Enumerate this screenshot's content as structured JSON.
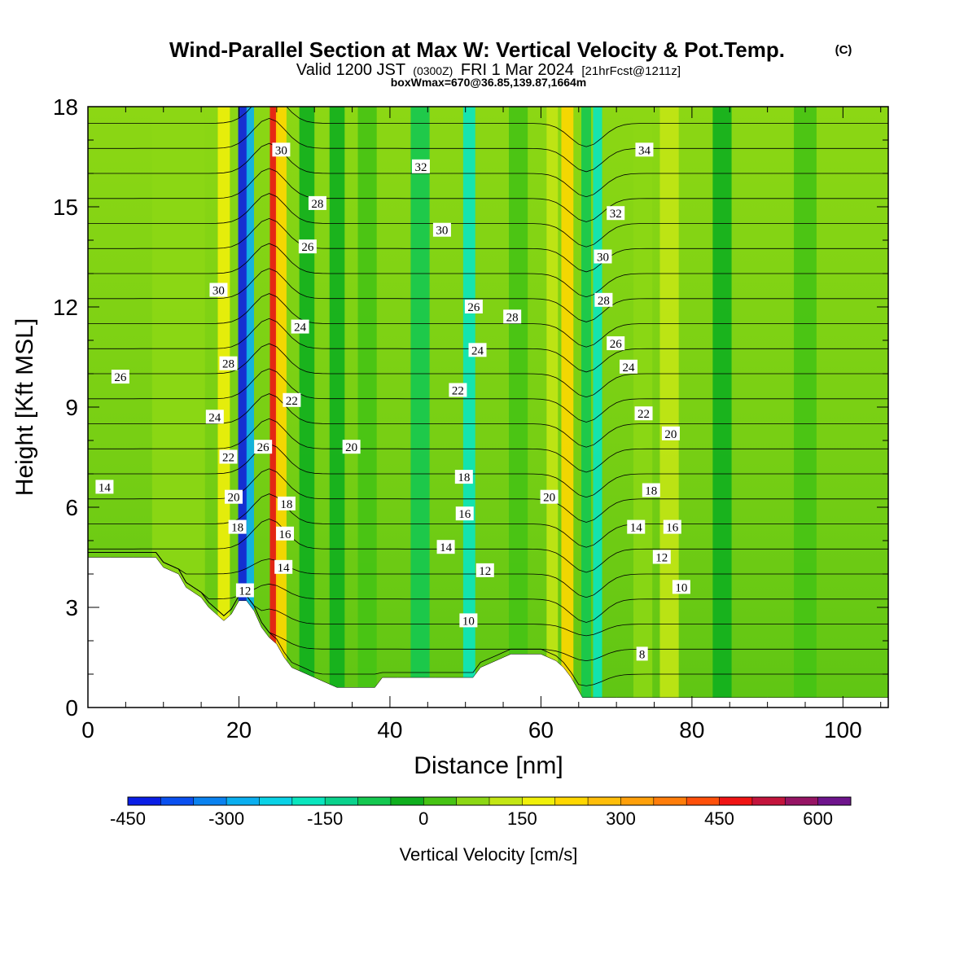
{
  "header": {
    "title": "Wind-Parallel Section at Max W: Vertical Velocity & Pot.Temp.",
    "copyright": "(C)",
    "valid_prefix": "Valid 1200 JST",
    "valid_utc": "(0300Z)",
    "valid_date": "FRI 1 Mar 2024",
    "forecast": "[21hrFcst@1211z]",
    "box_info": "boxWmax=670@36.85,139.87,1664m"
  },
  "chart_data": {
    "type": "heatmap",
    "title": "Wind-Parallel Section at Max W: Vertical Velocity & Pot.Temp.",
    "xlabel": "Distance [nm]",
    "ylabel": "Height [Kft MSL]",
    "xlim": [
      0,
      106
    ],
    "ylim": [
      0,
      18
    ],
    "x_ticks": [
      0,
      20,
      40,
      60,
      80,
      100
    ],
    "y_ticks": [
      0,
      3,
      6,
      9,
      12,
      15,
      18
    ],
    "colorbar": {
      "label": "Vertical Velocity [cm/s]",
      "min": -450,
      "step": 50,
      "tick_labels": [
        "-450",
        "-300",
        "-150",
        "0",
        "150",
        "300",
        "450",
        "600"
      ],
      "tick_values": [
        -450,
        -300,
        -150,
        0,
        150,
        300,
        450,
        600
      ],
      "colors": [
        "#0a1ee6",
        "#0a50f0",
        "#0a82f0",
        "#0aaff0",
        "#0ad2e6",
        "#0ae6be",
        "#0ad28c",
        "#14c850",
        "#0faf1e",
        "#46c314",
        "#8cd714",
        "#c3e614",
        "#f0f00a",
        "#ffd700",
        "#ffbe0a",
        "#ffa00a",
        "#ff7d0a",
        "#ff500a",
        "#f01414",
        "#c3143c",
        "#961464",
        "#6e148c"
      ]
    },
    "terrain_outline_kft": [
      [
        0,
        4.5
      ],
      [
        3,
        4.5
      ],
      [
        6,
        4.5
      ],
      [
        9,
        4.5
      ],
      [
        10,
        4.2
      ],
      [
        12,
        4.0
      ],
      [
        13,
        3.6
      ],
      [
        15,
        3.3
      ],
      [
        16,
        3.0
      ],
      [
        18,
        2.6
      ],
      [
        19,
        2.8
      ],
      [
        20,
        3.2
      ],
      [
        21,
        3.2
      ],
      [
        22,
        2.9
      ],
      [
        23,
        2.4
      ],
      [
        24,
        2.1
      ],
      [
        25,
        1.9
      ],
      [
        26,
        1.5
      ],
      [
        27,
        1.2
      ],
      [
        29,
        1.0
      ],
      [
        31,
        0.8
      ],
      [
        33,
        0.6
      ],
      [
        36,
        0.6
      ],
      [
        38,
        0.6
      ],
      [
        39,
        0.9
      ],
      [
        41,
        0.9
      ],
      [
        46,
        0.9
      ],
      [
        51,
        0.9
      ],
      [
        52,
        1.2
      ],
      [
        54,
        1.4
      ],
      [
        56,
        1.6
      ],
      [
        60,
        1.6
      ],
      [
        62,
        1.4
      ],
      [
        63,
        1.2
      ],
      [
        64,
        0.9
      ],
      [
        65,
        0.5
      ],
      [
        65.5,
        0.3
      ],
      [
        70,
        0.3
      ],
      [
        80,
        0.3
      ],
      [
        90,
        0.3
      ],
      [
        100,
        0.3
      ],
      [
        106,
        0.3
      ]
    ],
    "wind_columns": [
      {
        "x": 12,
        "w": 7,
        "v": 80
      },
      {
        "x": 18,
        "w": 1.6,
        "v": 150
      },
      {
        "x": 20.5,
        "w": 1.2,
        "v": -420
      },
      {
        "x": 21.5,
        "w": 1.0,
        "v": -280
      },
      {
        "x": 24.6,
        "w": 1.0,
        "v": 480
      },
      {
        "x": 25.6,
        "w": 1.4,
        "v": 200
      },
      {
        "x": 29,
        "w": 2.0,
        "v": -50
      },
      {
        "x": 33,
        "w": 2.0,
        "v": -30
      },
      {
        "x": 37,
        "w": 2.5,
        "v": 40
      },
      {
        "x": 44,
        "w": 2.5,
        "v": -80
      },
      {
        "x": 50.5,
        "w": 1.6,
        "v": -160
      },
      {
        "x": 57,
        "w": 2.5,
        "v": 40
      },
      {
        "x": 61.5,
        "w": 1.5,
        "v": 100
      },
      {
        "x": 63.5,
        "w": 1.6,
        "v": 210
      },
      {
        "x": 66,
        "w": 1.3,
        "v": -60
      },
      {
        "x": 67.5,
        "w": 1.2,
        "v": -170
      },
      {
        "x": 73.5,
        "w": 2.5,
        "v": 80
      },
      {
        "x": 77,
        "w": 2.5,
        "v": 110
      },
      {
        "x": 84,
        "w": 2.5,
        "v": -20
      },
      {
        "x": 95,
        "w": 3.0,
        "v": 30
      }
    ],
    "theta_labels": [
      {
        "text": "14",
        "x": 2.2,
        "y": 6.6
      },
      {
        "text": "26",
        "x": 4.3,
        "y": 9.9
      },
      {
        "text": "30",
        "x": 17.3,
        "y": 12.5
      },
      {
        "text": "28",
        "x": 18.6,
        "y": 10.3
      },
      {
        "text": "24",
        "x": 16.8,
        "y": 8.7
      },
      {
        "text": "22",
        "x": 18.6,
        "y": 7.5
      },
      {
        "text": "20",
        "x": 19.3,
        "y": 6.3
      },
      {
        "text": "18",
        "x": 19.8,
        "y": 5.4
      },
      {
        "text": "12",
        "x": 20.8,
        "y": 3.5
      },
      {
        "text": "26",
        "x": 23.2,
        "y": 7.8
      },
      {
        "text": "30",
        "x": 25.6,
        "y": 16.7
      },
      {
        "text": "28",
        "x": 30.4,
        "y": 15.1
      },
      {
        "text": "26",
        "x": 29.1,
        "y": 13.8
      },
      {
        "text": "24",
        "x": 28.1,
        "y": 11.4
      },
      {
        "text": "22",
        "x": 27.0,
        "y": 9.2
      },
      {
        "text": "18",
        "x": 26.3,
        "y": 6.1
      },
      {
        "text": "16",
        "x": 26.1,
        "y": 5.2
      },
      {
        "text": "14",
        "x": 25.9,
        "y": 4.2
      },
      {
        "text": "20",
        "x": 34.9,
        "y": 7.8
      },
      {
        "text": "32",
        "x": 44.1,
        "y": 16.2
      },
      {
        "text": "30",
        "x": 46.9,
        "y": 14.3
      },
      {
        "text": "26",
        "x": 51.1,
        "y": 12.0
      },
      {
        "text": "28",
        "x": 56.2,
        "y": 11.7
      },
      {
        "text": "24",
        "x": 51.6,
        "y": 10.7
      },
      {
        "text": "22",
        "x": 49.0,
        "y": 9.5
      },
      {
        "text": "18",
        "x": 49.8,
        "y": 6.9
      },
      {
        "text": "16",
        "x": 49.9,
        "y": 5.8
      },
      {
        "text": "14",
        "x": 47.4,
        "y": 4.8
      },
      {
        "text": "12",
        "x": 52.6,
        "y": 4.1
      },
      {
        "text": "10",
        "x": 50.4,
        "y": 2.6
      },
      {
        "text": "20",
        "x": 61.1,
        "y": 6.3
      },
      {
        "text": "34",
        "x": 73.7,
        "y": 16.7
      },
      {
        "text": "32",
        "x": 69.9,
        "y": 14.8
      },
      {
        "text": "30",
        "x": 68.2,
        "y": 13.5
      },
      {
        "text": "28",
        "x": 68.3,
        "y": 12.2
      },
      {
        "text": "26",
        "x": 69.9,
        "y": 10.9
      },
      {
        "text": "24",
        "x": 71.6,
        "y": 10.2
      },
      {
        "text": "22",
        "x": 73.6,
        "y": 8.8
      },
      {
        "text": "20",
        "x": 77.2,
        "y": 8.2
      },
      {
        "text": "18",
        "x": 74.6,
        "y": 6.5
      },
      {
        "text": "16",
        "x": 77.4,
        "y": 5.4
      },
      {
        "text": "14",
        "x": 72.6,
        "y": 5.4
      },
      {
        "text": "12",
        "x": 76.0,
        "y": 4.5
      },
      {
        "text": "10",
        "x": 78.6,
        "y": 3.6
      },
      {
        "text": "8",
        "x": 73.4,
        "y": 1.6
      }
    ]
  }
}
